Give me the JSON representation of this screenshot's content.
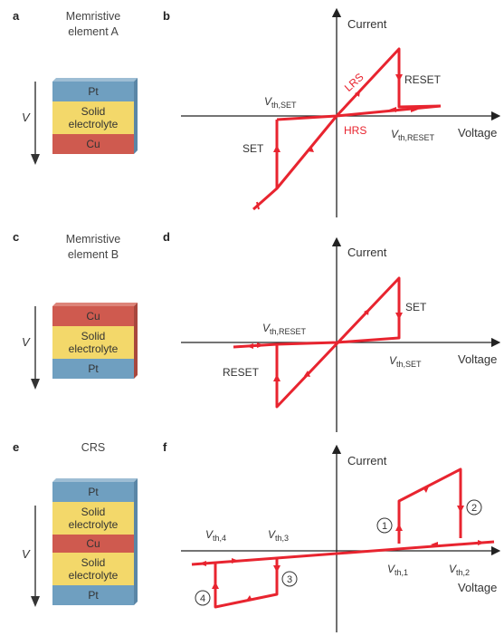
{
  "colors": {
    "curve": "#e8242f",
    "pt": "#6f9fc0",
    "electrolyte": "#f3d86a",
    "cu": "#cf5a4f",
    "axis": "#222222"
  },
  "panel_a": {
    "letter": "a",
    "title_line1": "Memristive",
    "title_line2": "element A",
    "layers": [
      "Pt",
      "Solid electrolyte",
      "Cu"
    ],
    "voltage_symbol": "V"
  },
  "panel_b": {
    "letter": "b",
    "y_axis": "Current",
    "x_axis": "Voltage",
    "labels": {
      "vth_set_main": "V",
      "vth_set_sub": "th,SET",
      "vth_reset_main": "V",
      "vth_reset_sub": "th,RESET",
      "set": "SET",
      "reset": "RESET",
      "lrs": "LRS",
      "hrs": "HRS"
    }
  },
  "panel_c": {
    "letter": "c",
    "title_line1": "Memristive",
    "title_line2": "element B",
    "layers": [
      "Cu",
      "Solid electrolyte",
      "Pt"
    ],
    "voltage_symbol": "V"
  },
  "panel_d": {
    "letter": "d",
    "y_axis": "Current",
    "x_axis": "Voltage",
    "labels": {
      "vth_reset_main": "V",
      "vth_reset_sub": "th,RESET",
      "vth_set_main": "V",
      "vth_set_sub": "th,SET",
      "set": "SET",
      "reset": "RESET"
    }
  },
  "panel_e": {
    "letter": "e",
    "title": "CRS",
    "layers": [
      "Pt",
      "Solid electrolyte",
      "Cu",
      "Solid electrolyte",
      "Pt"
    ],
    "voltage_symbol": "V"
  },
  "panel_f": {
    "letter": "f",
    "y_axis": "Current",
    "x_axis": "Voltage",
    "labels": {
      "vth4_main": "V",
      "vth4_sub": "th,4",
      "vth3_main": "V",
      "vth3_sub": "th,3",
      "vth1_main": "V",
      "vth1_sub": "th,1",
      "vth2_main": "V",
      "vth2_sub": "th,2",
      "step1": "1",
      "step2": "2",
      "step3": "3",
      "step4": "4"
    }
  }
}
